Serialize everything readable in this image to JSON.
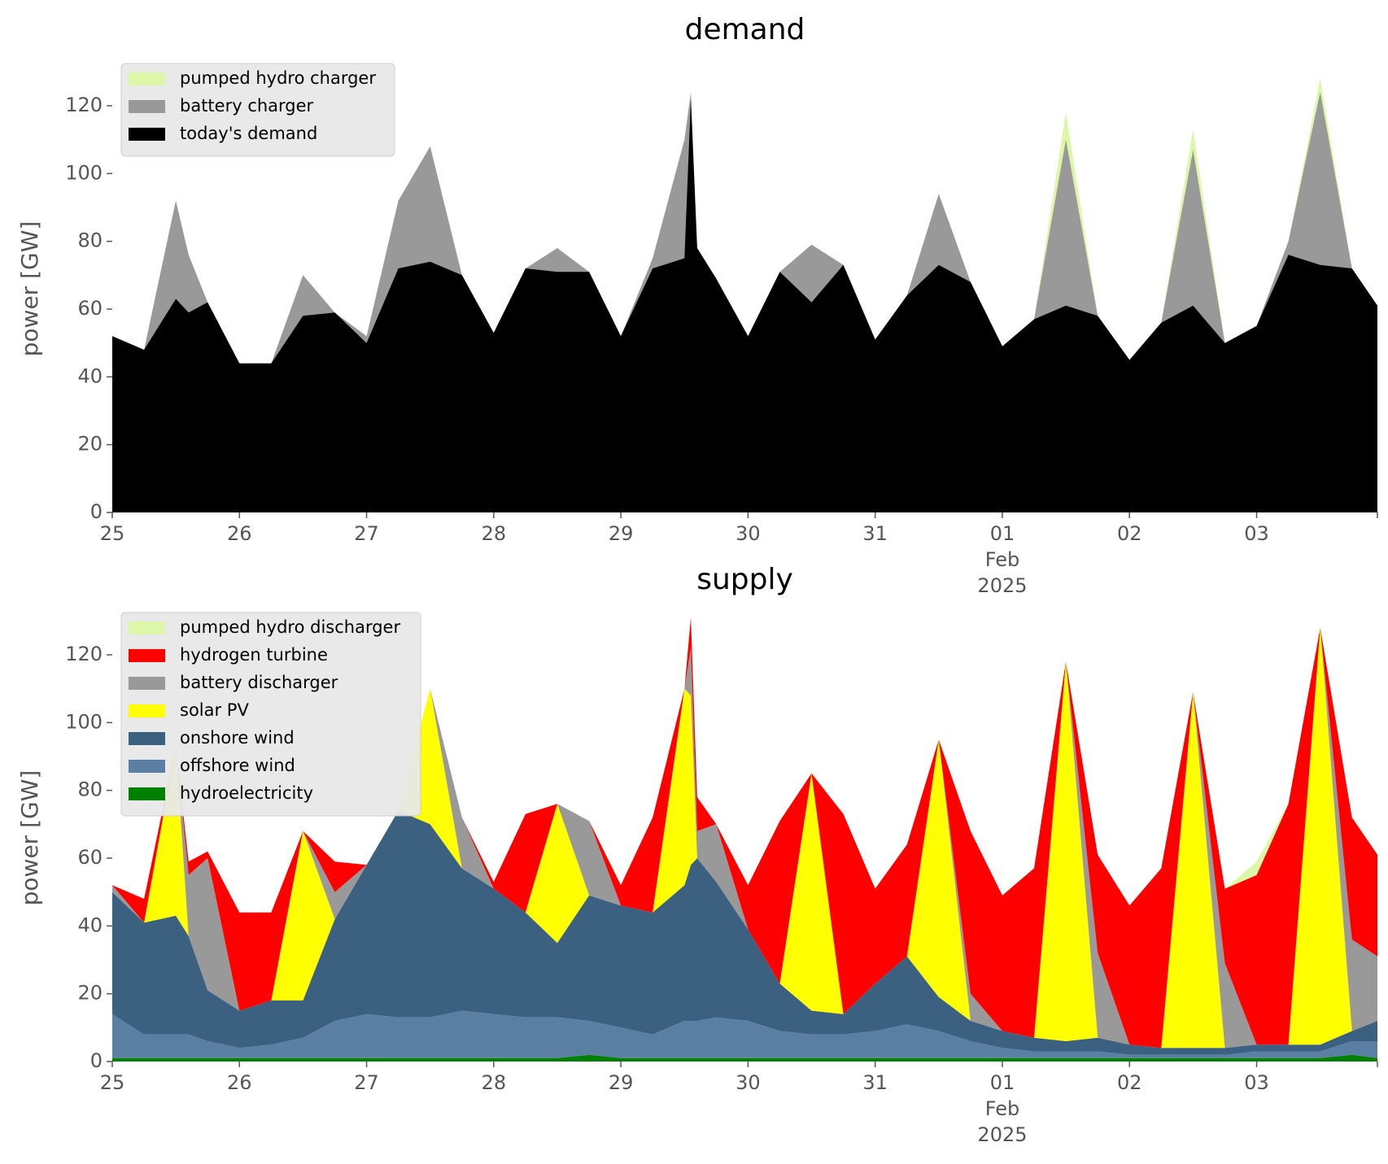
{
  "chart_data": [
    {
      "type": "area",
      "title": "demand",
      "ylabel": "power [GW]",
      "xlabel": "",
      "ylim": [
        0,
        132
      ],
      "yticks": [
        "0",
        "20",
        "40",
        "60",
        "80",
        "100",
        "120"
      ],
      "xticks": [
        "25",
        "26",
        "27",
        "28",
        "29",
        "30",
        "31",
        "01",
        "02",
        "03"
      ],
      "xtick_extra": {
        "tick": "01",
        "month": "Feb",
        "year": "2025"
      },
      "x_unit": "day",
      "x": [
        25.0,
        25.25,
        25.5,
        25.6,
        25.75,
        26.0,
        26.25,
        26.5,
        26.75,
        27.0,
        27.25,
        27.5,
        27.75,
        28.0,
        28.25,
        28.5,
        28.75,
        29.0,
        29.25,
        29.5,
        29.55,
        29.6,
        29.75,
        30.0,
        30.25,
        30.5,
        30.75,
        31.0,
        31.25,
        31.5,
        31.75,
        32.0,
        32.25,
        32.5,
        32.75,
        33.0,
        33.25,
        33.5,
        33.75,
        34.0,
        34.25,
        34.5,
        34.75,
        34.95
      ],
      "legend_position": "upper left",
      "grid": false,
      "series": [
        {
          "name": "today's demand",
          "color": "#000000",
          "values": [
            52,
            48,
            63,
            59,
            62,
            44,
            44,
            58,
            59,
            50,
            72,
            74,
            70,
            53,
            72,
            71,
            71,
            52,
            72,
            75,
            122,
            78,
            69,
            52,
            71,
            62,
            73,
            51,
            64,
            73,
            68,
            49,
            57,
            61,
            58,
            45,
            56,
            61,
            50,
            55,
            76,
            73,
            72,
            61
          ]
        },
        {
          "name": "battery charger",
          "color": "#999999",
          "values": [
            52,
            48,
            92,
            76,
            62,
            44,
            44,
            70,
            59,
            52,
            92,
            108,
            70,
            53,
            72,
            78,
            71,
            52,
            75,
            110,
            124,
            78,
            69,
            52,
            71,
            79,
            73,
            51,
            64,
            94,
            68,
            49,
            57,
            110,
            58,
            45,
            56,
            107,
            50,
            55,
            80,
            124,
            72,
            61
          ]
        },
        {
          "name": "pumped hydro charger",
          "color": "#ddf7a8",
          "values": [
            52,
            48,
            92,
            76,
            62,
            44,
            44,
            70,
            59,
            52,
            92,
            108,
            70,
            53,
            72,
            78,
            71,
            52,
            75,
            110,
            124,
            78,
            69,
            52,
            71,
            79,
            73,
            51,
            64,
            94,
            68,
            49,
            57,
            118,
            58,
            45,
            56,
            113,
            50,
            55,
            80,
            128,
            72,
            61
          ]
        }
      ]
    },
    {
      "type": "area",
      "title": "supply",
      "ylabel": "power [GW]",
      "xlabel": "",
      "ylim": [
        0,
        132
      ],
      "yticks": [
        "0",
        "20",
        "40",
        "60",
        "80",
        "100",
        "120"
      ],
      "xticks": [
        "25",
        "26",
        "27",
        "28",
        "29",
        "30",
        "31",
        "01",
        "02",
        "03"
      ],
      "xtick_extra": {
        "tick": "01",
        "month": "Feb",
        "year": "2025"
      },
      "x_unit": "day",
      "x": [
        25.0,
        25.25,
        25.5,
        25.6,
        25.75,
        26.0,
        26.25,
        26.5,
        26.75,
        27.0,
        27.25,
        27.5,
        27.75,
        28.0,
        28.25,
        28.5,
        28.75,
        29.0,
        29.25,
        29.5,
        29.55,
        29.6,
        29.75,
        30.0,
        30.25,
        30.5,
        30.75,
        31.0,
        31.25,
        31.5,
        31.75,
        32.0,
        32.25,
        32.5,
        32.75,
        33.0,
        33.25,
        33.5,
        33.75,
        34.0,
        34.25,
        34.5,
        34.75,
        34.95
      ],
      "legend_position": "upper left",
      "grid": false,
      "series": [
        {
          "name": "hydroelectricity",
          "color": "#008000",
          "values": [
            1,
            1,
            1,
            1,
            1,
            1,
            1,
            1,
            1,
            1,
            1,
            1,
            1,
            1,
            1,
            1,
            2,
            1,
            1,
            1,
            1,
            1,
            1,
            1,
            1,
            1,
            1,
            1,
            1,
            1,
            1,
            1,
            1,
            1,
            1,
            1,
            1,
            1,
            1,
            1,
            1,
            1,
            2,
            1
          ]
        },
        {
          "name": "offshore wind",
          "color": "#5b7fa3",
          "values": [
            13,
            7,
            7,
            7,
            5,
            3,
            4,
            6,
            11,
            13,
            12,
            12,
            14,
            13,
            12,
            12,
            10,
            9,
            7,
            11,
            11,
            11,
            12,
            11,
            8,
            7,
            7,
            8,
            10,
            8,
            5,
            3,
            2,
            2,
            2,
            1,
            1,
            1,
            1,
            2,
            2,
            2,
            4,
            5
          ]
        },
        {
          "name": "onshore wind",
          "color": "#3b6080",
          "values": [
            36,
            33,
            35,
            29,
            15,
            11,
            13,
            11,
            30,
            44,
            61,
            57,
            42,
            37,
            31,
            22,
            37,
            36,
            36,
            40,
            46,
            48,
            40,
            27,
            14,
            7,
            6,
            14,
            20,
            10,
            6,
            5,
            4,
            3,
            4,
            3,
            2,
            2,
            2,
            2,
            2,
            2,
            3,
            6
          ]
        },
        {
          "name": "solar PV",
          "color": "#ffff00",
          "values": [
            0,
            0,
            50,
            0,
            0,
            0,
            0,
            50,
            0,
            0,
            0,
            40,
            0,
            0,
            0,
            41,
            0,
            0,
            0,
            58,
            50,
            0,
            0,
            0,
            0,
            70,
            0,
            0,
            0,
            76,
            0,
            0,
            0,
            112,
            0,
            0,
            0,
            105,
            0,
            0,
            0,
            123,
            0,
            0
          ]
        },
        {
          "name": "battery discharger",
          "color": "#999999",
          "values": [
            2,
            0,
            0,
            18,
            39,
            0,
            0,
            0,
            8,
            0,
            0,
            0,
            15,
            0,
            0,
            0,
            22,
            0,
            0,
            0,
            14,
            8,
            17,
            0,
            0,
            0,
            0,
            0,
            0,
            0,
            8,
            0,
            0,
            0,
            25,
            0,
            0,
            0,
            25,
            0,
            0,
            0,
            27,
            19
          ]
        },
        {
          "name": "hydrogen turbine",
          "color": "#ff0000",
          "values": [
            0,
            7,
            0,
            4,
            2,
            29,
            26,
            0,
            9,
            0,
            0,
            0,
            0,
            2,
            29,
            0,
            0,
            6,
            28,
            0,
            9,
            10,
            0,
            13,
            48,
            0,
            59,
            28,
            33,
            0,
            48,
            40,
            50,
            0,
            29,
            41,
            53,
            0,
            22,
            50,
            71,
            0,
            36,
            30
          ]
        },
        {
          "name": "pumped hydro discharger",
          "color": "#ddf7a8",
          "values": [
            0,
            0,
            0,
            0,
            0,
            0,
            0,
            0,
            0,
            0,
            0,
            0,
            0,
            0,
            0,
            0,
            0,
            0,
            0,
            0,
            0,
            0,
            0,
            0,
            0,
            0,
            0,
            0,
            0,
            0,
            0,
            0,
            0,
            0,
            0,
            0,
            0,
            0,
            0,
            4,
            0,
            0,
            0,
            0
          ]
        }
      ]
    }
  ]
}
